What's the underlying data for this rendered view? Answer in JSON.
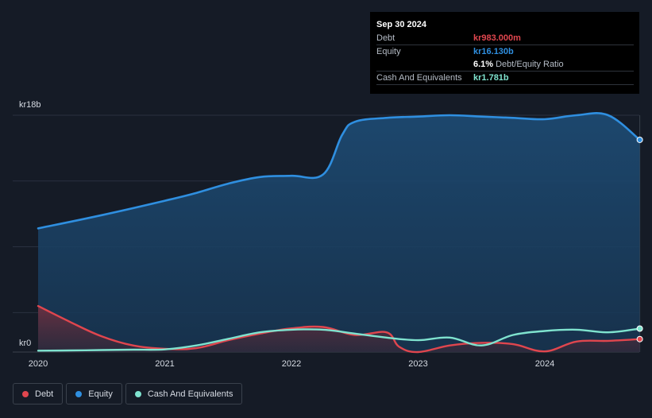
{
  "chart_data": {
    "type": "area",
    "title": "",
    "xlabel": "",
    "ylabel": "",
    "currency_prefix": "kr",
    "ylim": [
      0,
      18
    ],
    "y_unit": "b",
    "x_ticks": [
      2020,
      2021,
      2022,
      2023,
      2024
    ],
    "x_tick_labels": [
      "2020",
      "2021",
      "2022",
      "2023",
      "2024"
    ],
    "y_tick_labels": {
      "top": "kr18b",
      "bottom": "kr0"
    },
    "xlim": [
      2020,
      2024.75
    ],
    "series": [
      {
        "name": "Equity",
        "color": "#2f8fe0",
        "fill": true,
        "x": [
          2020.0,
          2020.5,
          2021.0,
          2021.25,
          2021.5,
          2021.75,
          2022.0,
          2022.25,
          2022.4,
          2022.5,
          2022.75,
          2023.0,
          2023.25,
          2023.5,
          2023.75,
          2024.0,
          2024.25,
          2024.5,
          2024.75
        ],
        "values": [
          9.4,
          10.4,
          11.5,
          12.1,
          12.8,
          13.3,
          13.4,
          13.5,
          16.5,
          17.5,
          17.8,
          17.9,
          18.0,
          17.9,
          17.8,
          17.7,
          18.0,
          18.0,
          16.13
        ]
      },
      {
        "name": "Debt",
        "color": "#e0464e",
        "fill": true,
        "x": [
          2020.0,
          2020.25,
          2020.5,
          2020.75,
          2021.0,
          2021.25,
          2021.5,
          2021.75,
          2022.0,
          2022.25,
          2022.5,
          2022.75,
          2022.85,
          2023.0,
          2023.25,
          2023.5,
          2023.75,
          2024.0,
          2024.25,
          2024.5,
          2024.75
        ],
        "values": [
          3.5,
          2.3,
          1.2,
          0.5,
          0.25,
          0.3,
          0.9,
          1.4,
          1.8,
          1.9,
          1.3,
          1.5,
          0.4,
          0.0,
          0.5,
          0.7,
          0.6,
          0.05,
          0.8,
          0.85,
          0.983
        ]
      },
      {
        "name": "Cash And Equivalents",
        "color": "#7fe3cf",
        "fill": false,
        "x": [
          2020.0,
          2020.25,
          2020.5,
          2020.75,
          2021.0,
          2021.25,
          2021.5,
          2021.75,
          2022.0,
          2022.25,
          2022.5,
          2022.75,
          2023.0,
          2023.25,
          2023.5,
          2023.75,
          2024.0,
          2024.25,
          2024.5,
          2024.75
        ],
        "values": [
          0.1,
          0.12,
          0.15,
          0.18,
          0.2,
          0.5,
          1.0,
          1.5,
          1.7,
          1.7,
          1.4,
          1.1,
          0.9,
          1.1,
          0.5,
          1.3,
          1.6,
          1.7,
          1.5,
          1.781
        ]
      }
    ]
  },
  "tooltip": {
    "date": "Sep 30 2024",
    "rows": [
      {
        "label": "Debt",
        "value": "kr983.000m",
        "color": "#e0464e"
      },
      {
        "label": "Equity",
        "value": "kr16.130b",
        "color": "#2f8fe0"
      },
      {
        "label": "",
        "value": "6.1%",
        "suffix": "Debt/Equity Ratio",
        "color": "#ffffff"
      },
      {
        "label": "Cash And Equivalents",
        "value": "kr1.781b",
        "color": "#7fe3cf"
      }
    ]
  },
  "legend": [
    {
      "label": "Debt",
      "color": "#e0464e"
    },
    {
      "label": "Equity",
      "color": "#2f8fe0"
    },
    {
      "label": "Cash And Equivalents",
      "color": "#7fe3cf"
    }
  ]
}
